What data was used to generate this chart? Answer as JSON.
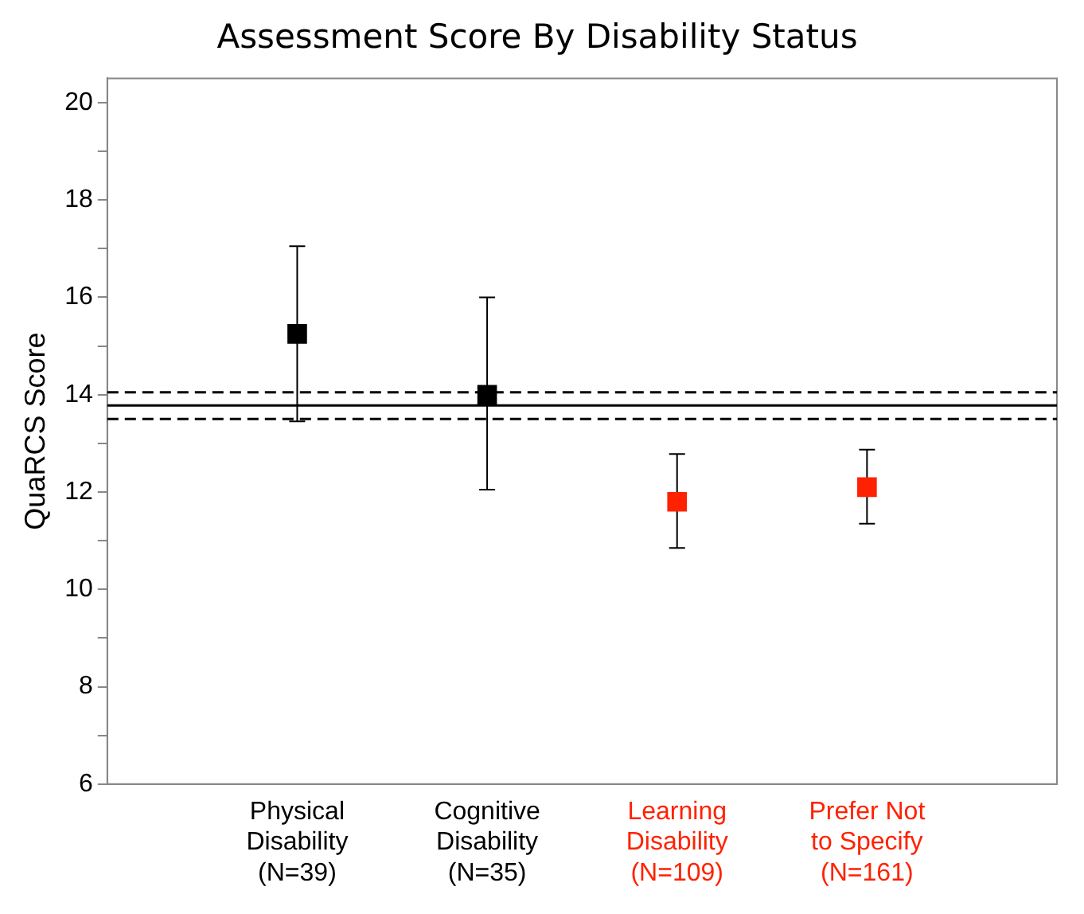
{
  "chart_data": {
    "type": "scatter",
    "title": "Assessment Score By Disability Status",
    "ylabel": "QuaRCS Score",
    "categories": [
      "Physical\nDisability\n(N=39)",
      "Cognitive\nDisability\n(N=35)",
      "Learning\nDisability\n(N=109)",
      "Prefer Not\nto Specify\n(N=161)"
    ],
    "values": [
      15.25,
      14.0,
      11.8,
      12.1
    ],
    "errors": [
      [
        13.45,
        17.05
      ],
      [
        12.05,
        16.0
      ],
      [
        10.85,
        12.78
      ],
      [
        11.35,
        12.87
      ]
    ],
    "colors": [
      "#000000",
      "#000000",
      "#ff2200",
      "#ff2200"
    ],
    "marker": "square",
    "ylim": [
      6,
      20.5
    ],
    "yticks": [
      6,
      {
        "value": 7,
        "label": null
      },
      8,
      {
        "value": 9,
        "label": null
      },
      10,
      {
        "value": 11,
        "label": null
      },
      12,
      {
        "value": 13,
        "label": null
      },
      14,
      {
        "value": 15,
        "label": null
      },
      16,
      {
        "value": 17,
        "label": null
      },
      18,
      {
        "value": 19,
        "label": null
      },
      20
    ],
    "ref_lines": [
      {
        "axis": "y",
        "value": 13.78,
        "label": null,
        "color": "#000000",
        "line_style": "solid"
      },
      {
        "axis": "y",
        "value": 14.05,
        "label": null,
        "color": "#000000",
        "line_style": "dashed"
      },
      {
        "axis": "y",
        "value": 13.5,
        "label": null,
        "color": "#000000",
        "line_style": "dashed"
      }
    ],
    "grid": false,
    "legend": false
  }
}
